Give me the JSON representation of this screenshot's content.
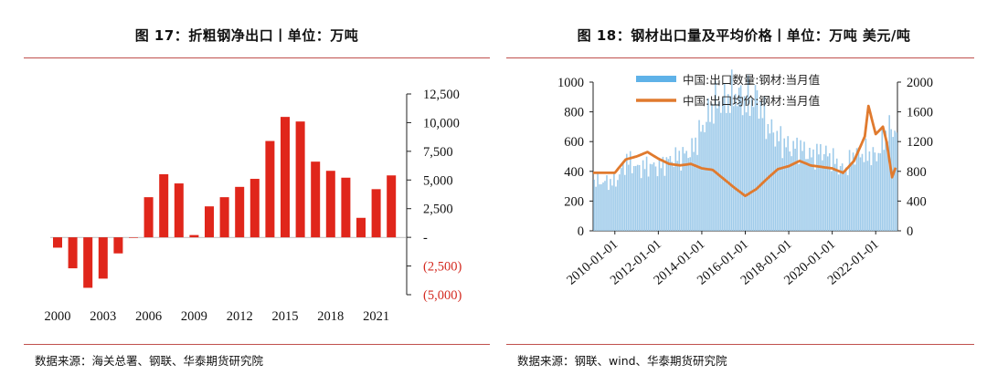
{
  "left": {
    "title": "图 17：折粗钢净出口丨单位：万吨",
    "source": "数据来源：海关总署、钢联、华泰期货研究院",
    "colors": {
      "bar": "#e0261b",
      "negative_tick": "#d42a20",
      "rule": "#c0504d"
    },
    "y_tick_labels": [
      "12,500",
      "10,000",
      "7,500",
      "5,000",
      "2,500",
      "-",
      "(2,500)",
      "(5,000)"
    ],
    "x_tick_labels": [
      "2000",
      "2003",
      "2006",
      "2009",
      "2012",
      "2015",
      "2018",
      "2021"
    ]
  },
  "right": {
    "title": "图 18：钢材出口量及平均价格丨单位：万吨 美元/吨",
    "source": "数据来源：钢联、wind、华泰期货研究院",
    "colors": {
      "bar": "#9fcbea",
      "legend_bar": "#5fb2e8",
      "line": "#e07a2e"
    },
    "legend": [
      "中国:出口数量:钢材:当月值",
      "中国:出口均价:钢材:当月值"
    ],
    "y_left_tick_labels": [
      "1000",
      "800",
      "600",
      "400",
      "200",
      "0"
    ],
    "y_right_tick_labels": [
      "2000",
      "1600",
      "1200",
      "800",
      "400",
      "0"
    ],
    "x_tick_labels": [
      "2010-01-01",
      "2012-01-01",
      "2014-01-01",
      "2016-01-01",
      "2018-01-01",
      "2020-01-01",
      "2022-01-01"
    ]
  },
  "chart_data": [
    {
      "type": "bar",
      "title": "图 17：折粗钢净出口丨单位：万吨",
      "categories": [
        "2000",
        "2001",
        "2002",
        "2003",
        "2004",
        "2005",
        "2006",
        "2007",
        "2008",
        "2009",
        "2010",
        "2011",
        "2012",
        "2013",
        "2014",
        "2015",
        "2016",
        "2017",
        "2018",
        "2019",
        "2020",
        "2021",
        "2022"
      ],
      "values": [
        -900,
        -2700,
        -4400,
        -3600,
        -1400,
        0,
        3500,
        5500,
        4700,
        200,
        2700,
        3500,
        4400,
        5100,
        8400,
        10500,
        10100,
        6600,
        5800,
        5200,
        1700,
        4200,
        5400
      ],
      "ylim": [
        -5000,
        12500
      ]
    },
    {
      "type": "bar",
      "title": "图 18：钢材出口量及平均价格丨单位：万吨 美元/吨",
      "series": [
        {
          "name": "中国:出口数量:钢材:当月值",
          "type": "bar",
          "axis": "left",
          "anchors_x": [
            "2010-01",
            "2010-07",
            "2011-01",
            "2011-07",
            "2012-01",
            "2012-07",
            "2013-01",
            "2013-07",
            "2014-01",
            "2014-07",
            "2015-01",
            "2015-07",
            "2016-01",
            "2016-07",
            "2017-01",
            "2017-07",
            "2018-01",
            "2018-07",
            "2019-01",
            "2019-07",
            "2020-01",
            "2020-07",
            "2021-01",
            "2021-07",
            "2022-01",
            "2022-07",
            "2022-12"
          ],
          "anchors_y": [
            330,
            480,
            420,
            440,
            430,
            480,
            500,
            540,
            700,
            850,
            880,
            920,
            870,
            900,
            700,
            620,
            560,
            560,
            500,
            540,
            480,
            400,
            520,
            520,
            500,
            680,
            680
          ]
        },
        {
          "name": "中国:出口均价:钢材:当月值",
          "type": "line",
          "axis": "right",
          "anchors_x": [
            "2010-01",
            "2010-07",
            "2011-01",
            "2011-07",
            "2012-01",
            "2012-07",
            "2013-01",
            "2013-07",
            "2014-01",
            "2014-07",
            "2015-01",
            "2015-07",
            "2016-01",
            "2016-07",
            "2017-01",
            "2017-07",
            "2018-01",
            "2018-07",
            "2019-01",
            "2019-07",
            "2020-01",
            "2020-07",
            "2021-01",
            "2021-07",
            "2021-09",
            "2022-01",
            "2022-05",
            "2022-07",
            "2022-10",
            "2022-12"
          ],
          "anchors_y": [
            780,
            960,
            1000,
            1060,
            970,
            900,
            880,
            900,
            840,
            820,
            700,
            580,
            470,
            560,
            700,
            830,
            870,
            940,
            880,
            860,
            840,
            780,
            940,
            1270,
            1680,
            1300,
            1400,
            1200,
            720,
            850
          ]
        }
      ],
      "ylim_left": [
        0,
        1000
      ],
      "ylim_right": [
        0,
        2000
      ],
      "xlim": [
        "2009-01",
        "2022-12"
      ]
    }
  ]
}
